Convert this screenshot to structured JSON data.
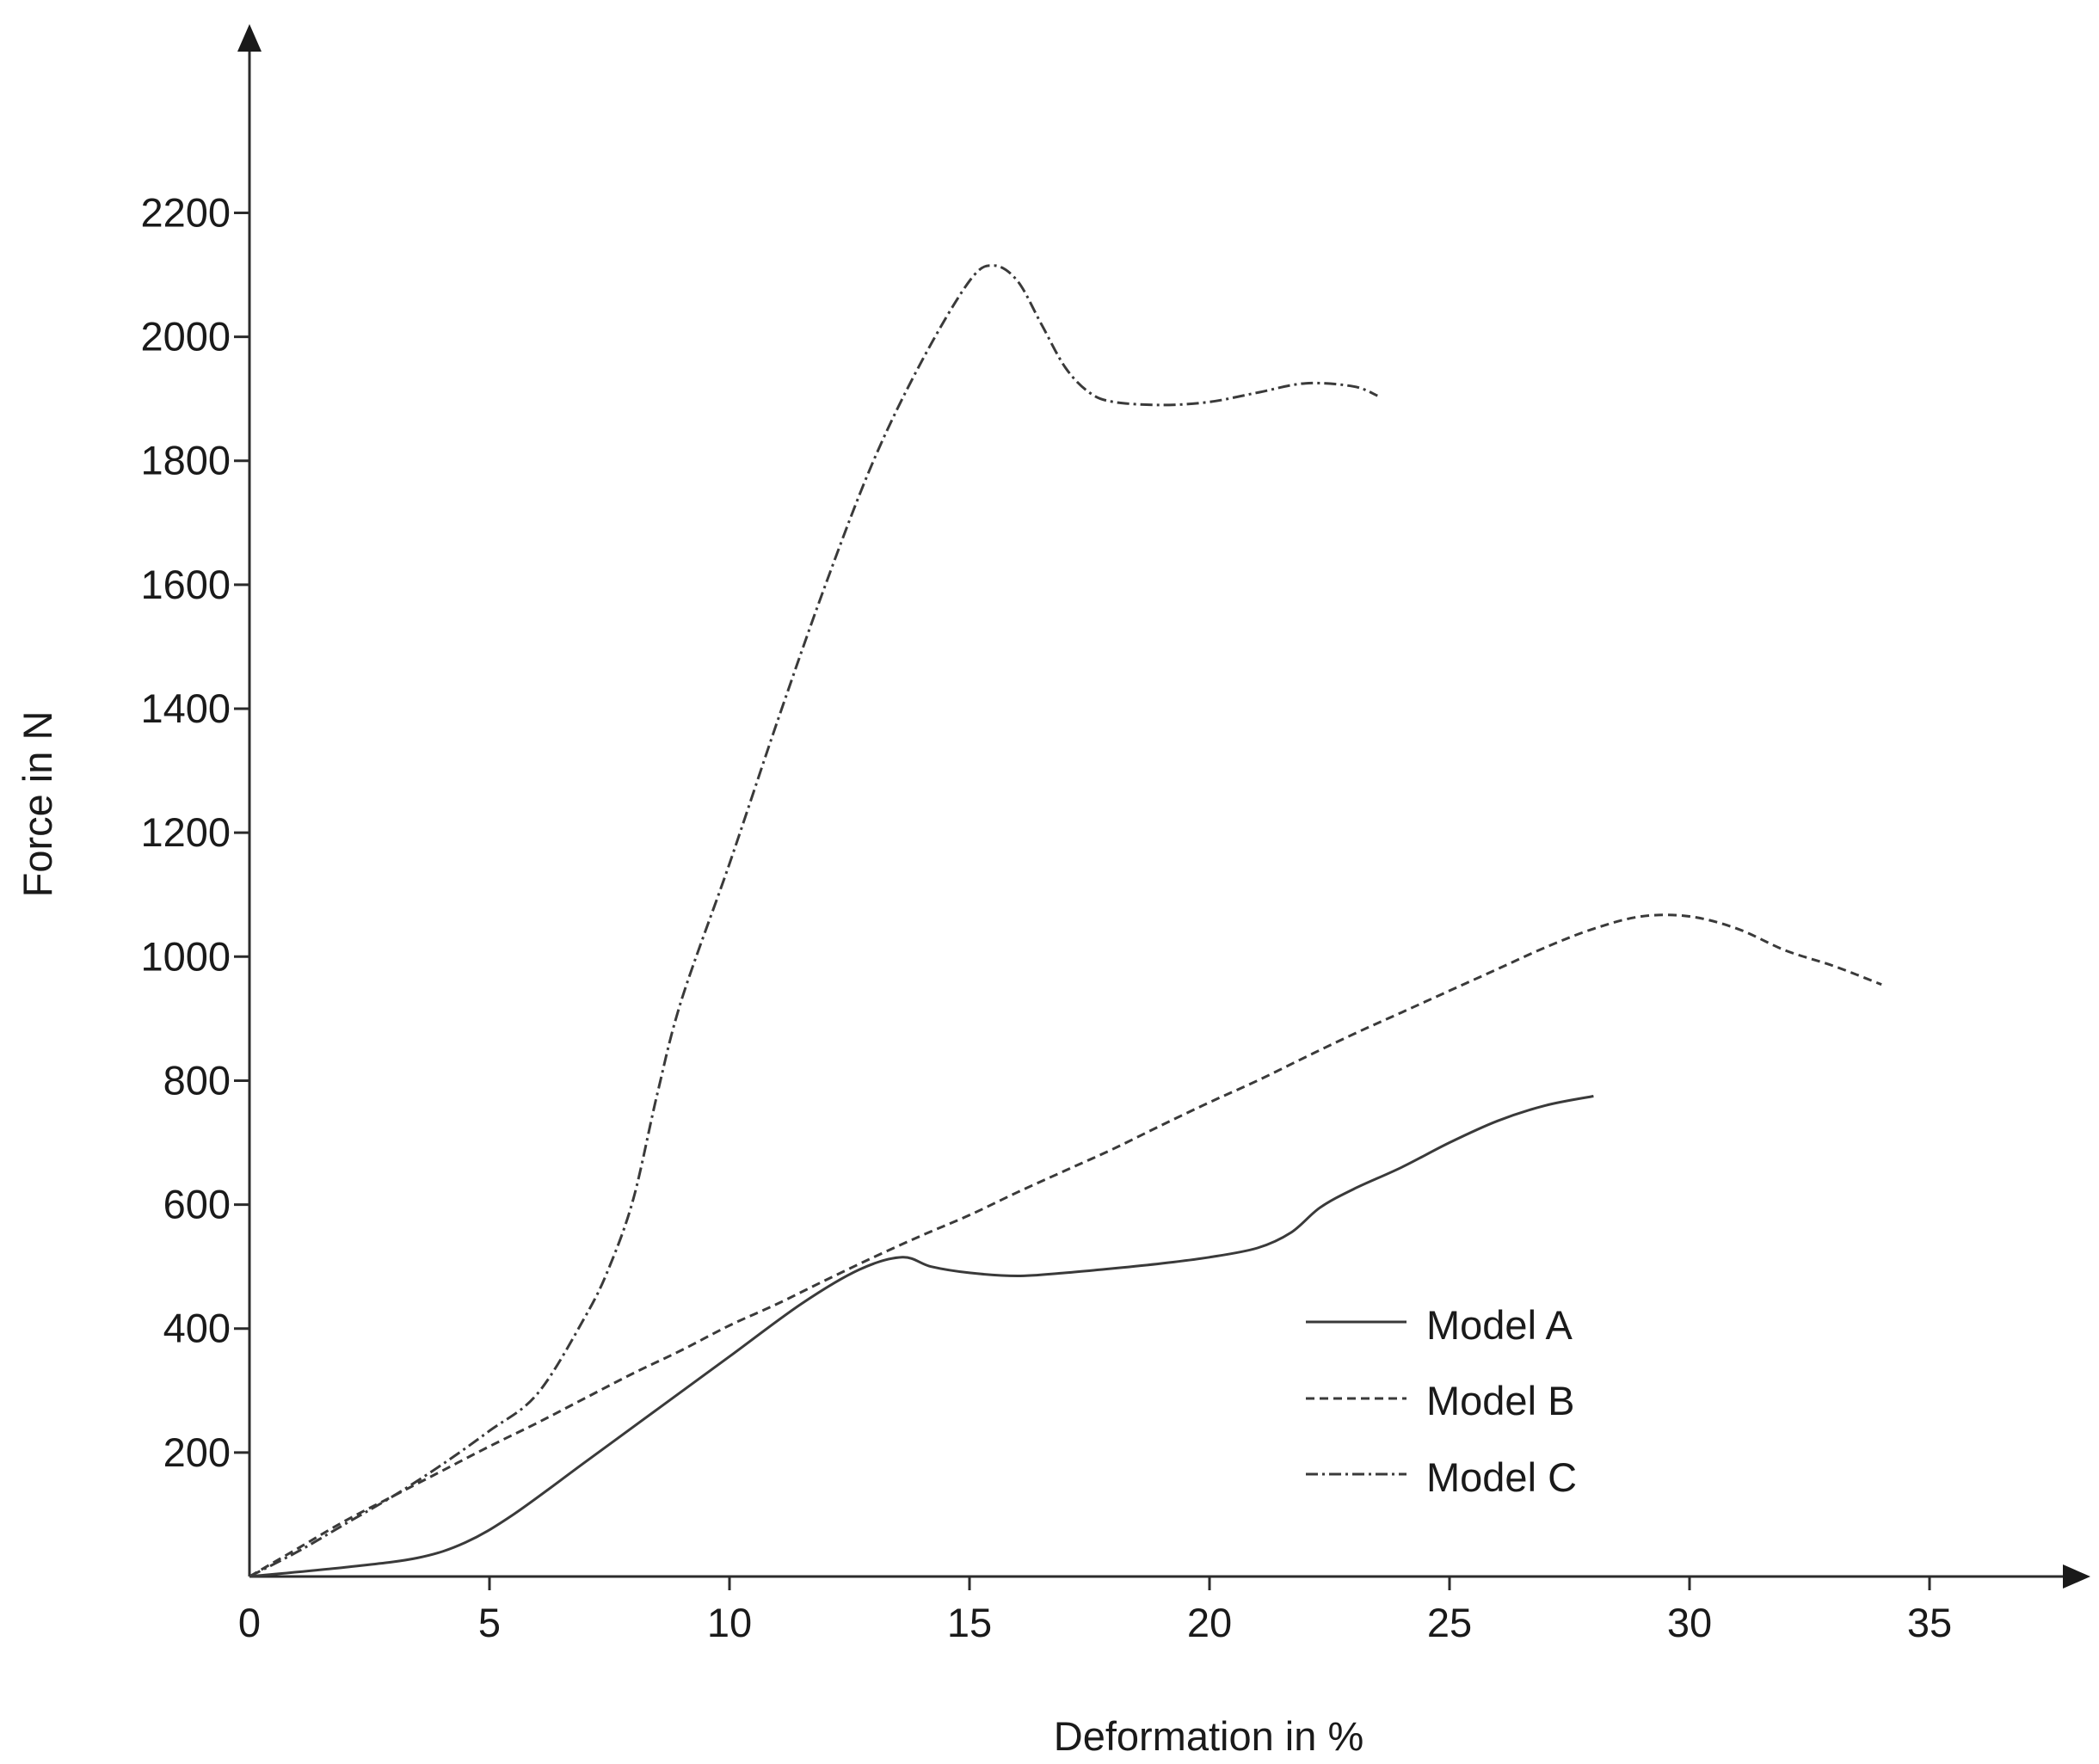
{
  "chart_data": {
    "type": "line",
    "title": "",
    "xlabel": "Deformation in %",
    "ylabel": "Force in N",
    "xlim": [
      0,
      38
    ],
    "ylim": [
      0,
      2400
    ],
    "x_ticks": [
      0,
      5,
      10,
      15,
      20,
      25,
      30,
      35
    ],
    "x_tick_labels": [
      "0",
      "5",
      "10",
      "15",
      "20",
      "25",
      "30",
      "35"
    ],
    "y_ticks": [
      200,
      400,
      600,
      800,
      1000,
      1200,
      1400,
      1600,
      1800,
      2000,
      2200
    ],
    "y_tick_labels": [
      "200",
      "400",
      "600",
      "800",
      "1000",
      "1200",
      "1400",
      "1600",
      "1800",
      "2000",
      "2200"
    ],
    "grid": false,
    "legend_position": "bottom-right",
    "series": [
      {
        "name": "Model A",
        "style": "solid",
        "x": [
          0,
          2,
          3.5,
          4.5,
          5.5,
          7,
          8.5,
          10,
          11.5,
          12.7,
          13.6,
          14.2,
          15,
          16,
          17,
          18,
          19,
          20,
          21,
          21.7,
          22.3,
          23,
          24,
          25,
          26,
          27,
          28
        ],
        "y": [
          0,
          15,
          30,
          55,
          100,
          185,
          270,
          355,
          440,
          495,
          515,
          500,
          490,
          485,
          490,
          497,
          505,
          515,
          530,
          555,
          595,
          625,
          660,
          700,
          735,
          760,
          775
        ]
      },
      {
        "name": "Model B",
        "style": "dashed",
        "x": [
          0,
          1,
          2,
          3,
          4,
          5,
          6,
          7,
          8,
          9,
          10,
          11,
          12,
          13,
          14,
          15,
          16,
          17,
          18,
          19,
          20,
          21,
          22,
          23,
          24,
          25,
          26,
          27,
          28,
          29,
          30,
          31,
          32,
          33,
          34
        ],
        "y": [
          0,
          45,
          90,
          130,
          170,
          210,
          248,
          288,
          328,
          365,
          405,
          440,
          478,
          515,
          550,
          583,
          620,
          655,
          690,
          728,
          765,
          800,
          838,
          875,
          910,
          945,
          980,
          1015,
          1045,
          1065,
          1065,
          1045,
          1010,
          985,
          955
        ]
      },
      {
        "name": "Model C",
        "style": "dash-dot",
        "x": [
          0,
          1,
          2,
          3,
          4,
          5,
          6,
          7,
          7.5,
          8,
          8.5,
          9,
          10,
          11,
          12,
          13,
          14,
          15,
          15.5,
          16,
          16.5,
          17,
          17.5,
          18,
          19,
          20,
          21,
          22,
          23,
          23.5
        ],
        "y": [
          0,
          40,
          85,
          130,
          180,
          235,
          295,
          420,
          500,
          610,
          780,
          930,
          1150,
          1380,
          1600,
          1800,
          1960,
          2090,
          2115,
          2090,
          2020,
          1950,
          1910,
          1895,
          1890,
          1895,
          1910,
          1925,
          1920,
          1905
        ]
      }
    ]
  }
}
